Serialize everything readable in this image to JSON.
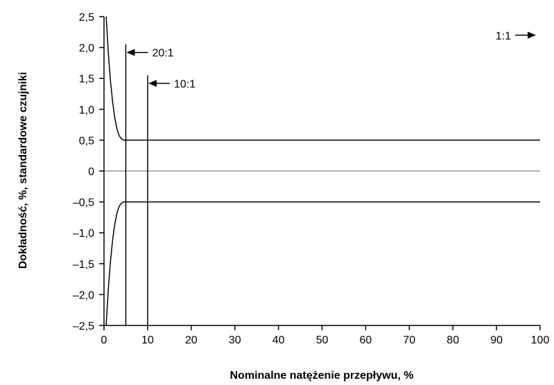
{
  "chart_data": {
    "type": "line",
    "xlabel": "Nominalne natężenie przepływu, %",
    "ylabel": "Dokładność, %, standardowe czujniki",
    "xlim": [
      0,
      100
    ],
    "ylim": [
      -2.5,
      2.5
    ],
    "x_ticks": [
      0,
      10,
      20,
      30,
      40,
      50,
      60,
      70,
      80,
      90,
      100
    ],
    "x_tick_labels": [
      "0",
      "10",
      "20",
      "30",
      "40",
      "50",
      "60",
      "70",
      "80",
      "90",
      "100"
    ],
    "y_ticks": [
      2.5,
      2.0,
      1.5,
      1.0,
      0.5,
      0,
      -0.5,
      -1.0,
      -1.5,
      -2.0,
      -2.5
    ],
    "y_tick_labels": [
      "2,5",
      "2,0",
      "1,5",
      "1,0",
      "0,5",
      "0",
      "–0,5",
      "–1,0",
      "–1,5",
      "–2,0",
      "–2,5"
    ],
    "grid": false,
    "series": [
      {
        "x": [
          0.5,
          1,
          1.5,
          2,
          2.5,
          3,
          3.5,
          4,
          4.5,
          5,
          10,
          20,
          30,
          40,
          50,
          60,
          70,
          80,
          90,
          100
        ],
        "y": [
          2.5,
          1.9,
          1.45,
          1.1,
          0.85,
          0.67,
          0.57,
          0.52,
          0.5,
          0.5,
          0.5,
          0.5,
          0.5,
          0.5,
          0.5,
          0.5,
          0.5,
          0.5,
          0.5,
          0.5
        ]
      },
      {
        "x": [
          0.5,
          1,
          1.5,
          2,
          2.5,
          3,
          3.5,
          4,
          4.5,
          5,
          10,
          20,
          30,
          40,
          50,
          60,
          70,
          80,
          90,
          100
        ],
        "y": [
          -2.5,
          -1.9,
          -1.45,
          -1.1,
          -0.85,
          -0.67,
          -0.57,
          -0.52,
          -0.5,
          -0.5,
          -0.5,
          -0.5,
          -0.5,
          -0.5,
          -0.5,
          -0.5,
          -0.5,
          -0.5,
          -0.5,
          -0.5
        ]
      }
    ],
    "zero_line": {
      "y": 0,
      "color": "#999999"
    },
    "markers": [
      {
        "label": "20:1",
        "x": 5,
        "y_top": 2.05
      },
      {
        "label": "10:1",
        "x": 10,
        "y_top": 1.55
      }
    ],
    "annotations": [
      {
        "label": "20:1",
        "x": 5,
        "y": 1.92
      },
      {
        "label": "10:1",
        "x": 10,
        "y": 1.42
      },
      {
        "label": "1:1",
        "x": 100,
        "y": 2.2
      }
    ]
  }
}
